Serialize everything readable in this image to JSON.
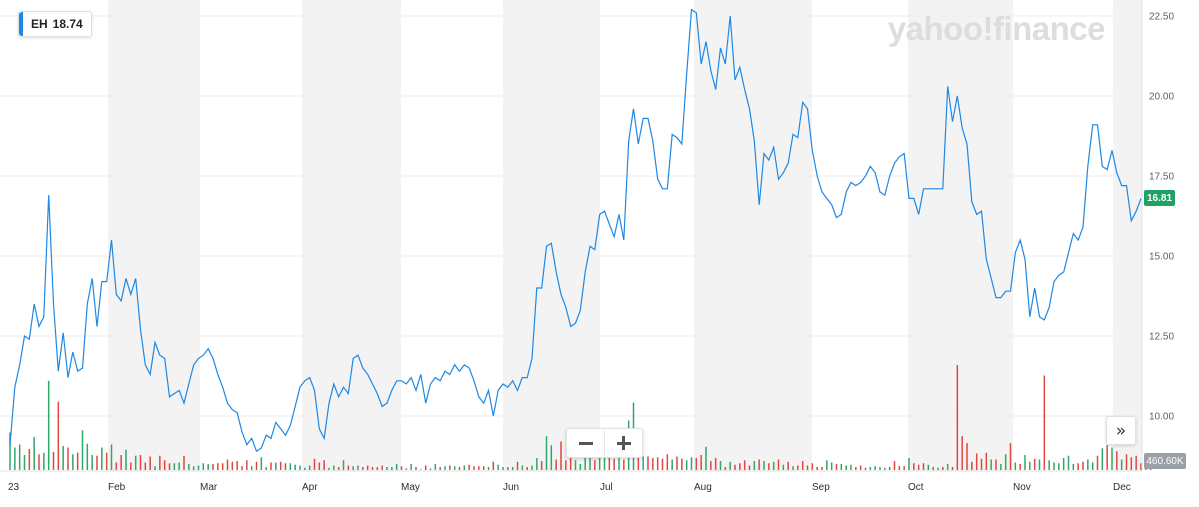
{
  "watermark": "yahoo!finance",
  "legend": {
    "symbol": "EH",
    "value": "18.74"
  },
  "last_price_tag": "16.81",
  "volume_tag": "460.60K",
  "colors": {
    "price_line": "#1e88e5",
    "volume_up": "#2ea86a",
    "volume_down": "#e2463f",
    "price_tag": "#21a265",
    "band": "#f3f3f3"
  },
  "controls": {
    "zoom_out_icon": "minus-icon",
    "zoom_in_icon": "plus-icon",
    "next_icon": "double-chevron-right-icon"
  },
  "chart_data": {
    "type": "line",
    "title": "",
    "xlabel": "",
    "ylabel": "",
    "x_ticks": [
      "23",
      "Feb",
      "Mar",
      "Apr",
      "May",
      "Jun",
      "Jul",
      "Aug",
      "Sep",
      "Oct",
      "Nov",
      "Dec"
    ],
    "y_ticks": [
      "10.00",
      "12.50",
      "15.00",
      "17.50",
      "20.00",
      "22.50"
    ],
    "ylim": [
      8.3,
      23.3
    ],
    "grid": true,
    "series": [
      {
        "values": [
          9.1,
          10.9,
          11.6,
          12.5,
          12.4,
          13.5,
          12.8,
          13.1,
          16.9,
          13.5,
          11.4,
          12.6,
          11.2,
          12.0,
          11.4,
          11.5,
          13.5,
          14.3,
          12.8,
          14.2,
          14.2,
          15.5,
          13.8,
          13.6,
          14.3,
          13.8,
          14.3,
          12.7,
          11.6,
          11.3,
          12.3,
          11.9,
          11.8,
          10.6,
          10.7,
          10.8,
          10.4,
          11.0,
          11.6,
          11.8,
          11.9,
          12.1,
          11.8,
          11.3,
          10.9,
          10.4,
          10.2,
          10.1,
          9.5,
          9.1,
          9.3,
          8.9,
          9.0,
          9.4,
          9.3,
          9.8,
          9.6,
          9.4,
          9.7,
          10.3,
          10.9,
          11.1,
          11.2,
          10.8,
          9.6,
          9.3,
          10.4,
          11.0,
          10.6,
          10.9,
          10.7,
          11.8,
          11.9,
          11.5,
          11.3,
          11.0,
          10.7,
          10.3,
          10.4,
          10.8,
          11.1,
          11.1,
          11.0,
          11.2,
          10.8,
          11.3,
          10.4,
          11.0,
          11.2,
          11.1,
          11.4,
          11.3,
          11.6,
          11.4,
          11.6,
          11.5,
          11.1,
          10.6,
          10.4,
          10.8,
          10.0,
          10.8,
          11.0,
          10.9,
          11.1,
          10.8,
          11.2,
          11.2,
          11.8,
          14.0,
          14.0,
          15.3,
          15.4,
          14.5,
          13.8,
          13.4,
          12.8,
          12.9,
          13.3,
          14.5,
          15.3,
          15.2,
          16.3,
          16.4,
          16.0,
          15.6,
          16.3,
          15.5,
          18.6,
          19.6,
          18.5,
          19.3,
          19.3,
          18.6,
          17.4,
          17.1,
          17.1,
          18.8,
          18.7,
          18.5,
          20.7,
          22.7,
          22.6,
          21.0,
          21.7,
          20.8,
          20.2,
          21.5,
          21.0,
          22.5,
          20.5,
          20.9,
          20.2,
          19.6,
          18.6,
          16.6,
          18.2,
          18.0,
          18.4,
          17.4,
          17.6,
          17.9,
          18.8,
          18.7,
          19.8,
          19.6,
          18.3,
          17.5,
          17.0,
          16.8,
          16.6,
          16.2,
          16.3,
          17.0,
          17.3,
          17.2,
          17.3,
          17.5,
          17.8,
          17.6,
          17.0,
          16.9,
          17.5,
          17.9,
          18.1,
          18.2,
          16.8,
          16.8,
          16.3,
          17.1,
          17.1,
          17.1,
          17.1,
          17.1,
          20.3,
          19.2,
          20.0,
          19.0,
          18.5,
          16.7,
          16.3,
          16.4,
          14.9,
          14.3,
          13.7,
          13.7,
          13.9,
          13.9,
          15.1,
          15.5,
          14.9,
          13.1,
          14.0,
          13.1,
          13.0,
          13.4,
          14.2,
          14.4,
          14.5,
          15.1,
          15.7,
          15.5,
          15.9,
          17.8,
          19.1,
          19.1,
          17.8,
          17.7,
          18.3,
          17.6,
          17.2,
          17.2,
          16.1,
          16.4,
          16.8
        ]
      }
    ],
    "volume": [
      5.0,
      3.0,
      3.4,
      2.0,
      2.8,
      4.4,
      2.1,
      2.3,
      11.9,
      2.4,
      9.1,
      3.2,
      3.0,
      2.1,
      2.3,
      5.3,
      3.5,
      2.0,
      1.9,
      3.0,
      2.3,
      3.4,
      1.0,
      2.0,
      2.7,
      1.0,
      1.9,
      2.0,
      1.0,
      1.8,
      0.5,
      1.9,
      1.3,
      0.9,
      0.9,
      1.0,
      1.9,
      0.8,
      0.5,
      0.6,
      0.9,
      0.8,
      0.8,
      0.9,
      0.9,
      1.4,
      1.1,
      1.2,
      0.5,
      1.3,
      0.5,
      1.1,
      1.7,
      0.4,
      1.0,
      1.0,
      1.1,
      0.9,
      0.9,
      0.7,
      0.6,
      0.3,
      0.6,
      1.5,
      1.0,
      1.3,
      0.3,
      0.6,
      0.4,
      1.3,
      0.6,
      0.5,
      0.6,
      0.4,
      0.6,
      0.4,
      0.4,
      0.6,
      0.4,
      0.4,
      0.8,
      0.5,
      0.2,
      0.8,
      0.4,
      0.1,
      0.6,
      0.2,
      0.8,
      0.4,
      0.5,
      0.6,
      0.5,
      0.4,
      0.6,
      0.7,
      0.5,
      0.5,
      0.5,
      0.4,
      1.1,
      0.7,
      0.4,
      0.4,
      0.4,
      1.1,
      0.6,
      0.4,
      0.6,
      1.6,
      1.2,
      4.5,
      3.3,
      1.4,
      3.8,
      1.3,
      2.1,
      1.3,
      0.8,
      2.9,
      2.2,
      1.3,
      3.1,
      1.7,
      1.6,
      1.5,
      1.7,
      1.4,
      6.6,
      9.0,
      3.8,
      1.8,
      1.8,
      1.6,
      1.7,
      1.5,
      2.1,
      1.4,
      1.8,
      1.5,
      1.3,
      1.7,
      1.6,
      2.0,
      3.1,
      1.2,
      1.6,
      1.2,
      0.4,
      1.1,
      0.7,
      0.9,
      1.3,
      0.6,
      1.2,
      1.4,
      1.2,
      0.9,
      1.1,
      1.4,
      0.7,
      1.1,
      0.5,
      0.6,
      1.2,
      0.6,
      0.9,
      0.4,
      0.4,
      1.3,
      1.0,
      0.8,
      0.8,
      0.6,
      0.7,
      0.4,
      0.6,
      0.3,
      0.4,
      0.5,
      0.4,
      0.3,
      0.4,
      1.2,
      0.5,
      0.5,
      1.6,
      0.9,
      0.7,
      0.9,
      0.7,
      0.4,
      0.3,
      0.4,
      0.8,
      0.4,
      14.0,
      4.5,
      3.6,
      1.1,
      2.2,
      1.5,
      2.3,
      1.4,
      1.4,
      0.8,
      2.1,
      3.6,
      1.0,
      0.8,
      2.0,
      1.1,
      1.5,
      1.4,
      12.6,
      1.3,
      1.0,
      0.9,
      1.6,
      1.9,
      0.8,
      0.9,
      1.1,
      1.4,
      1.0,
      1.9,
      2.9,
      3.3,
      3.0,
      2.5,
      1.4,
      2.1,
      1.7,
      1.9,
      0.9,
      1.3,
      0.6
    ],
    "volume_up": [
      true,
      true,
      true,
      true,
      false,
      true,
      false,
      true,
      true,
      false,
      false,
      true,
      false,
      true,
      false,
      true,
      true,
      true,
      false,
      true,
      false,
      true,
      false,
      false,
      true,
      false,
      true,
      false,
      false,
      false,
      true,
      false,
      false,
      false,
      true,
      true,
      false,
      true,
      true,
      true,
      true,
      true,
      false,
      false,
      false,
      false,
      false,
      false,
      false,
      false,
      true,
      false,
      true,
      true,
      false,
      true,
      false,
      false,
      true,
      true,
      true,
      true,
      true,
      false,
      false,
      false,
      true,
      true,
      false,
      true,
      false,
      true,
      true,
      false,
      false,
      false,
      false,
      false,
      true,
      true,
      true,
      false,
      false,
      true,
      false,
      true,
      false,
      true,
      true,
      false,
      true,
      false,
      true,
      false,
      true,
      false,
      false,
      false,
      false,
      true,
      false,
      true,
      true,
      false,
      true,
      false,
      true,
      false,
      true,
      true,
      false,
      true,
      true,
      false,
      false,
      false,
      false,
      true,
      true,
      true,
      true,
      false,
      true,
      true,
      false,
      false,
      true,
      false,
      true,
      true,
      false,
      true,
      false,
      false,
      false,
      false,
      false,
      true,
      false,
      false,
      true,
      true,
      false,
      false,
      true,
      false,
      false,
      true,
      false,
      true,
      false,
      false,
      false,
      false,
      true,
      false,
      true,
      false,
      true,
      false,
      true,
      false,
      true,
      false,
      false,
      false,
      false,
      false,
      false,
      true,
      true,
      false,
      true,
      true,
      true,
      false,
      false,
      false,
      true,
      true,
      true,
      true,
      false,
      false,
      false,
      false,
      true,
      false,
      false,
      false,
      true,
      false,
      true,
      false,
      true,
      false,
      false,
      false,
      false,
      false,
      false,
      false,
      false,
      true,
      false,
      true,
      true,
      false,
      true,
      false,
      true,
      true,
      false,
      true,
      false,
      true,
      true,
      true,
      true,
      true,
      true,
      false,
      false,
      true,
      true,
      false,
      true,
      false,
      true,
      false,
      true,
      false,
      false,
      false,
      false,
      false,
      false,
      true
    ]
  }
}
